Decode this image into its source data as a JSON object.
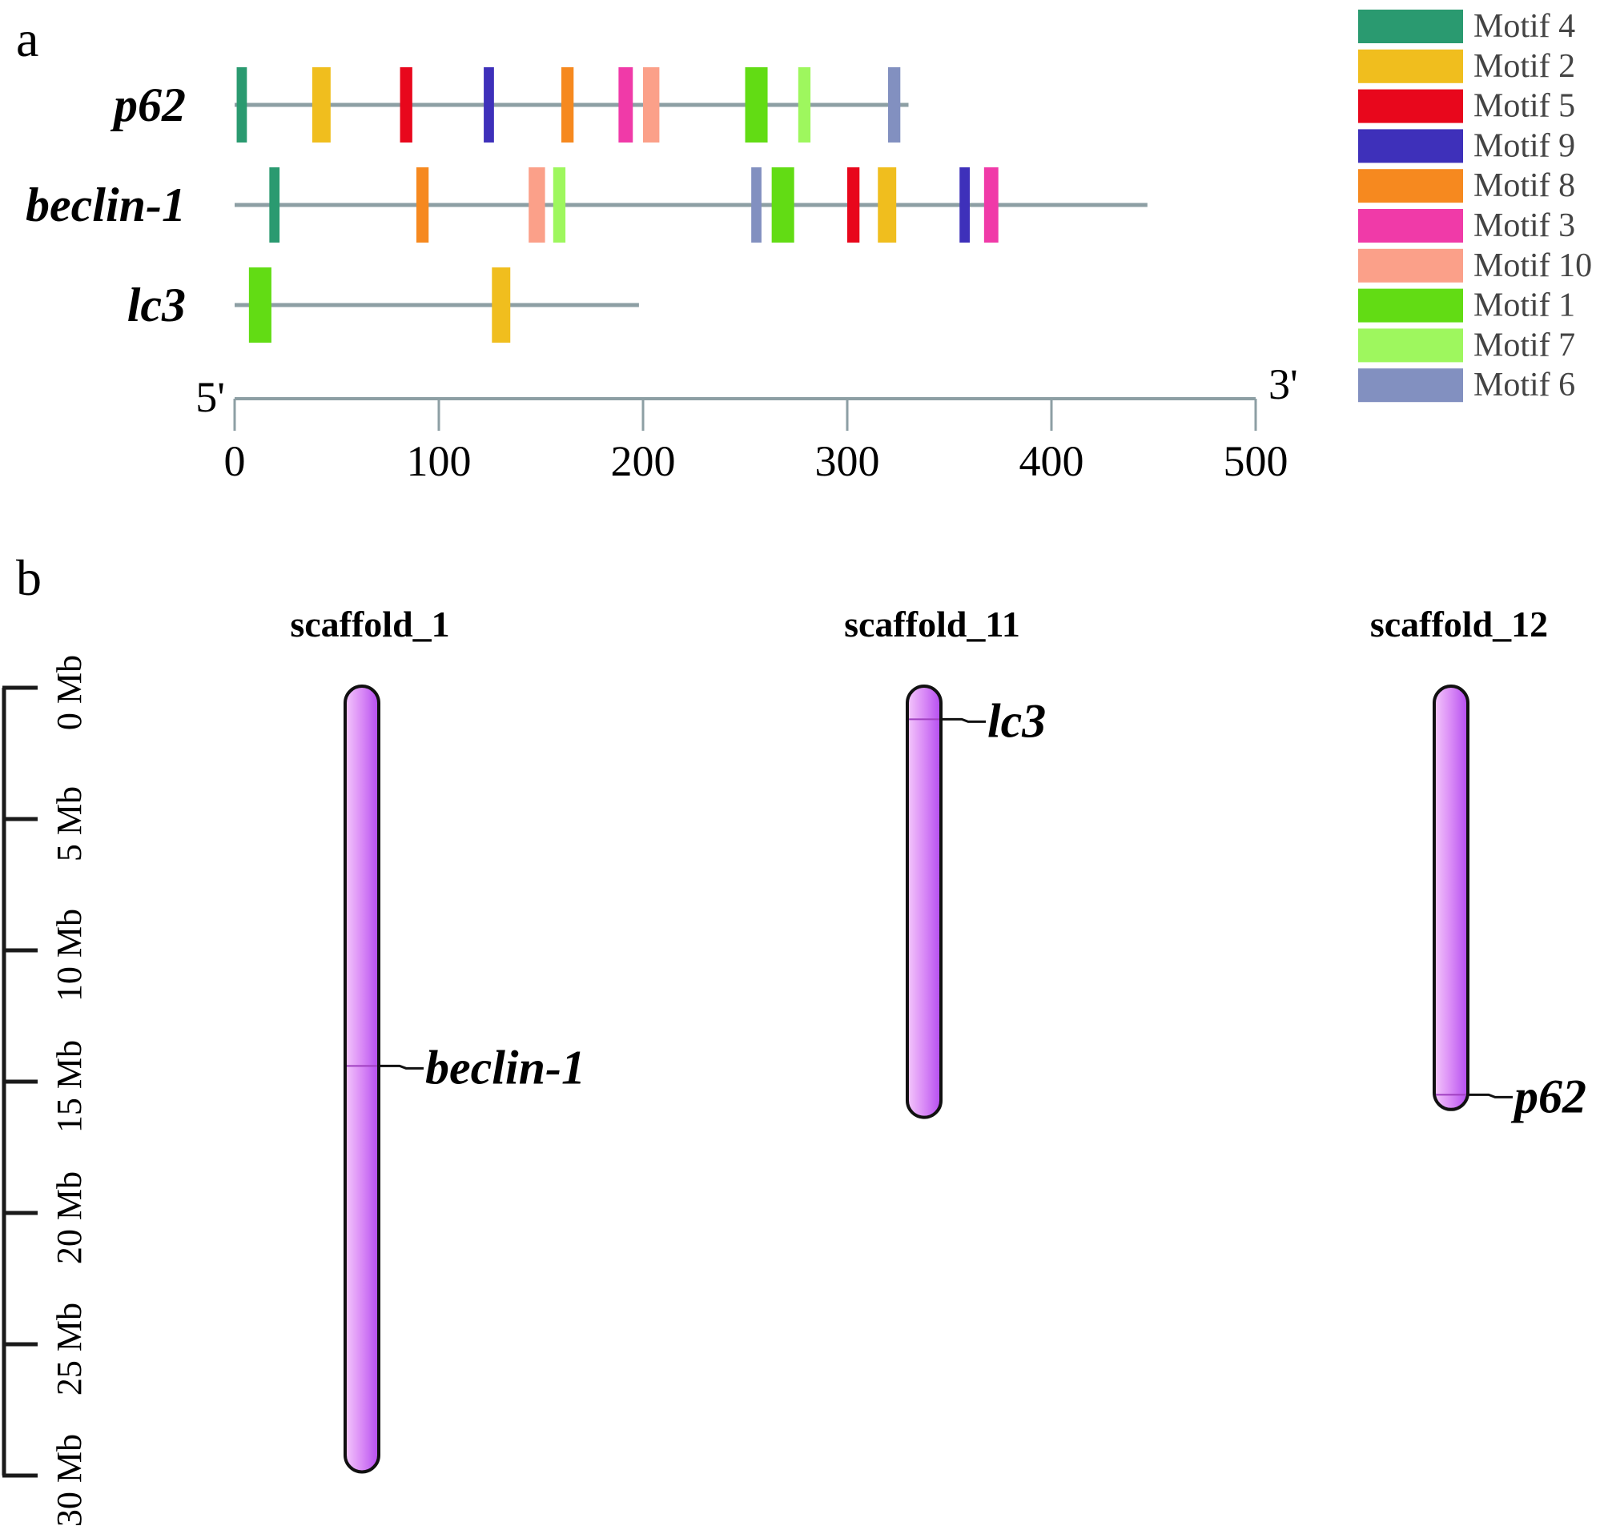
{
  "chart_data": [
    {
      "type": "motif-map",
      "panel": "a",
      "xaxis": {
        "range": [
          0,
          500
        ],
        "ticks": [
          0,
          100,
          200,
          300,
          400,
          500
        ],
        "start_label": "5'",
        "end_label": "3'"
      },
      "legend": [
        {
          "name": "Motif 4",
          "color": "#2a9a70"
        },
        {
          "name": "Motif 2",
          "color": "#f0be1e"
        },
        {
          "name": "Motif 5",
          "color": "#e8071c"
        },
        {
          "name": "Motif 9",
          "color": "#3e30ba"
        },
        {
          "name": "Motif 8",
          "color": "#f6891f"
        },
        {
          "name": "Motif 3",
          "color": "#f03aa8"
        },
        {
          "name": "Motif 10",
          "color": "#fba089"
        },
        {
          "name": "Motif 1",
          "color": "#62dc14"
        },
        {
          "name": "Motif 7",
          "color": "#9ef75e"
        },
        {
          "name": "Motif 6",
          "color": "#8290c0"
        }
      ],
      "genes": [
        {
          "name": "p62",
          "length": 330,
          "motifs": [
            {
              "motif": "Motif 4",
              "start": 1,
              "end": 6
            },
            {
              "motif": "Motif 2",
              "start": 38,
              "end": 47
            },
            {
              "motif": "Motif 5",
              "start": 81,
              "end": 87
            },
            {
              "motif": "Motif 9",
              "start": 122,
              "end": 127
            },
            {
              "motif": "Motif 8",
              "start": 160,
              "end": 166
            },
            {
              "motif": "Motif 3",
              "start": 188,
              "end": 195
            },
            {
              "motif": "Motif 10",
              "start": 200,
              "end": 208
            },
            {
              "motif": "Motif 1",
              "start": 250,
              "end": 261
            },
            {
              "motif": "Motif 7",
              "start": 276,
              "end": 282
            },
            {
              "motif": "Motif 6",
              "start": 320,
              "end": 326
            }
          ]
        },
        {
          "name": "beclin-1",
          "length": 447,
          "motifs": [
            {
              "motif": "Motif 4",
              "start": 17,
              "end": 22
            },
            {
              "motif": "Motif 8",
              "start": 89,
              "end": 95
            },
            {
              "motif": "Motif 10",
              "start": 144,
              "end": 152
            },
            {
              "motif": "Motif 7",
              "start": 156,
              "end": 162
            },
            {
              "motif": "Motif 6",
              "start": 253,
              "end": 258
            },
            {
              "motif": "Motif 1",
              "start": 263,
              "end": 274
            },
            {
              "motif": "Motif 5",
              "start": 300,
              "end": 306
            },
            {
              "motif": "Motif 2",
              "start": 315,
              "end": 324
            },
            {
              "motif": "Motif 9",
              "start": 355,
              "end": 360
            },
            {
              "motif": "Motif 3",
              "start": 367,
              "end": 374
            }
          ]
        },
        {
          "name": "lc3",
          "length": 198,
          "motifs": [
            {
              "motif": "Motif 1",
              "start": 7,
              "end": 18
            },
            {
              "motif": "Motif 2",
              "start": 126,
              "end": 135
            }
          ]
        }
      ]
    },
    {
      "type": "chromosome-map",
      "panel": "b",
      "yaxis": {
        "range_mb": [
          0,
          30
        ],
        "ticks_mb": [
          0,
          5,
          10,
          15,
          20,
          25,
          30
        ],
        "tick_labels": [
          "0 Mb",
          "5 Mb",
          "10 Mb",
          "15 Mb",
          "20 Mb",
          "25 Mb",
          "30 Mb"
        ]
      },
      "chromosome_color": "#cc66f2",
      "scaffolds": [
        {
          "name": "scaffold_1",
          "length_mb": 29.8,
          "genes": [
            {
              "name": "beclin-1",
              "position_mb": 14.4
            }
          ]
        },
        {
          "name": "scaffold_11",
          "length_mb": 16.3,
          "genes": [
            {
              "name": "lc3",
              "position_mb": 1.2
            }
          ]
        },
        {
          "name": "scaffold_12",
          "length_mb": 16.0,
          "genes": [
            {
              "name": "p62",
              "position_mb": 15.5
            }
          ]
        }
      ]
    }
  ],
  "panels": {
    "a_label": "a",
    "b_label": "b"
  }
}
